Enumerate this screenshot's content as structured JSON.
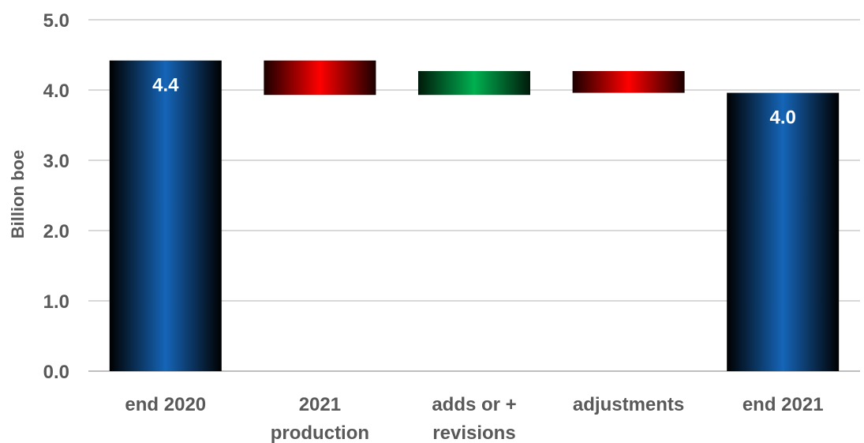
{
  "chart_data": {
    "type": "bar",
    "variant": "waterfall",
    "title": "",
    "xlabel": "",
    "ylabel": "Billion boe",
    "ylim": [
      0,
      5
    ],
    "y_ticks": [
      "0.0",
      "1.0",
      "2.0",
      "3.0",
      "4.0",
      "5.0"
    ],
    "grid": "horizontal",
    "categories": [
      [
        "end 2020"
      ],
      [
        "2021",
        "production"
      ],
      [
        "adds or +",
        "revisions"
      ],
      [
        "adjustments"
      ],
      [
        "end 2021"
      ]
    ],
    "bars": [
      {
        "kind": "total",
        "start": 0,
        "end": 4.42,
        "label": "4.4",
        "color": "#1565b8"
      },
      {
        "kind": "decrease",
        "start": 4.42,
        "end": 3.93,
        "label": "",
        "color": "#ff0000"
      },
      {
        "kind": "increase",
        "start": 3.93,
        "end": 4.27,
        "label": "",
        "color": "#00b050"
      },
      {
        "kind": "decrease",
        "start": 4.27,
        "end": 3.96,
        "label": "",
        "color": "#ff0000"
      },
      {
        "kind": "total",
        "start": 0,
        "end": 3.96,
        "label": "4.0",
        "color": "#1565b8"
      }
    ]
  }
}
